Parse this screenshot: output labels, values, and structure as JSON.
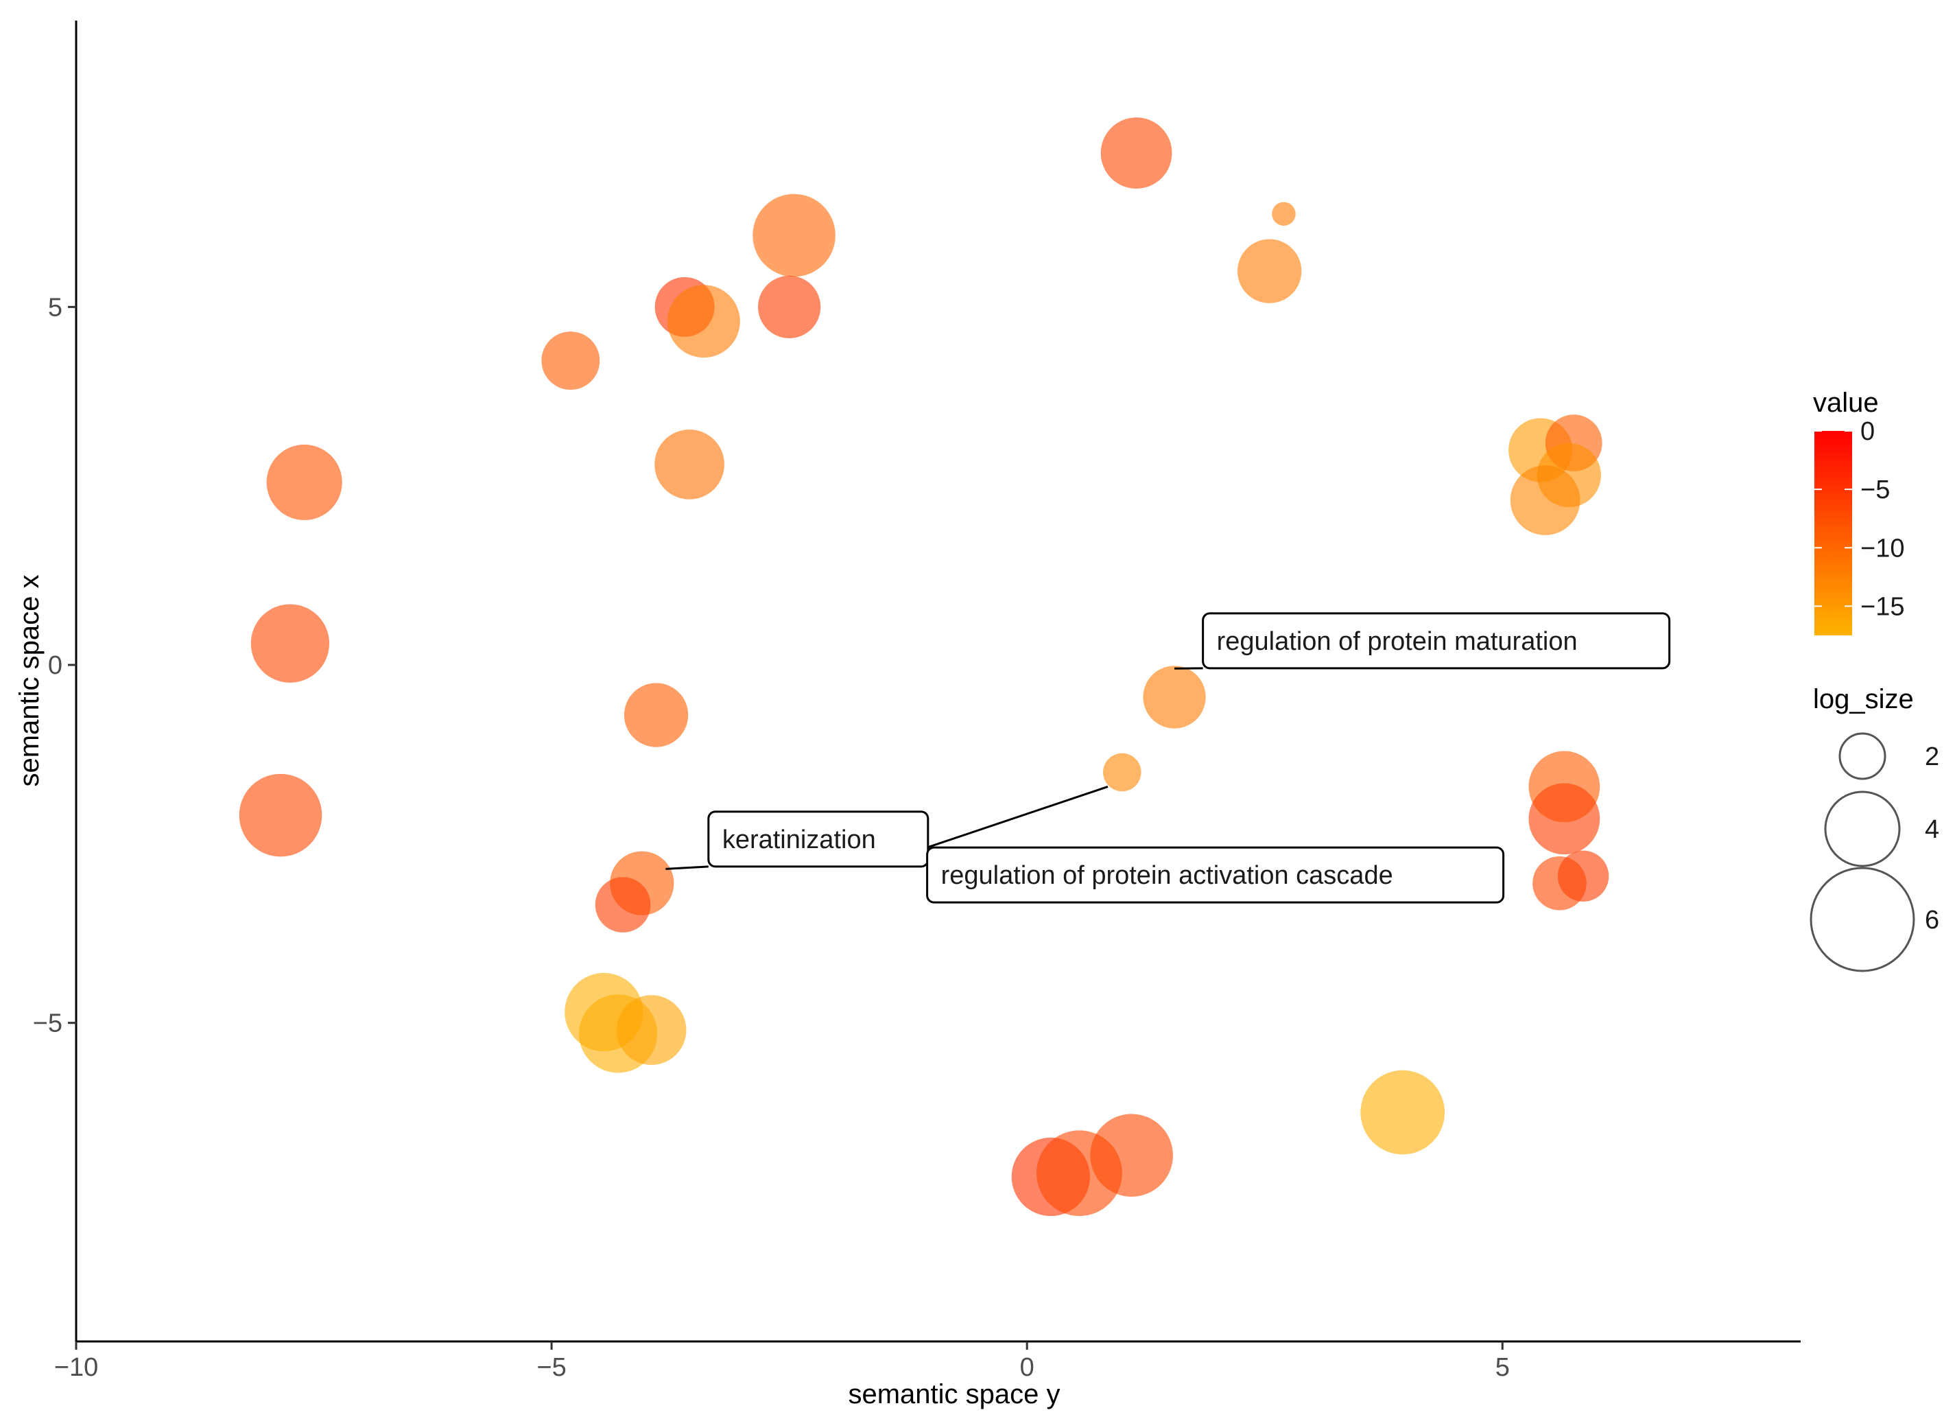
{
  "chart_data": {
    "type": "scatter",
    "title": "",
    "xlabel": "semantic space y",
    "ylabel": "semantic space x",
    "xlim": [
      -10,
      8.1
    ],
    "ylim": [
      -9.45,
      9
    ],
    "x_ticks": [
      -10,
      -5,
      0,
      5
    ],
    "x_tick_labels": [
      "−10",
      "−5",
      "0",
      "5"
    ],
    "y_ticks": [
      -5,
      0,
      5
    ],
    "y_tick_labels": [
      "−5",
      "0",
      "5"
    ],
    "grid": false,
    "legend_position": "right",
    "color_legend": {
      "title": "value",
      "min": -17.5,
      "max": 0,
      "breaks": [
        0,
        -5,
        -10,
        -15
      ],
      "break_labels": [
        "0",
        "−5",
        "−10",
        "−15"
      ],
      "low_color": "#ffb300",
      "high_color": "#ff0000"
    },
    "size_legend": {
      "title": "log_size",
      "breaks": [
        2,
        4,
        6
      ],
      "break_labels": [
        "2",
        "4",
        "6"
      ]
    },
    "points": [
      {
        "x": 1.15,
        "y": 7.15,
        "log_size": 3.8,
        "value": -7
      },
      {
        "x": 2.7,
        "y": 6.3,
        "log_size": 0.5,
        "value": -12
      },
      {
        "x": -2.45,
        "y": 6.0,
        "log_size": 4.6,
        "value": -10
      },
      {
        "x": 2.55,
        "y": 5.5,
        "log_size": 3.3,
        "value": -12
      },
      {
        "x": -3.6,
        "y": 5.0,
        "log_size": 3.0,
        "value": -5
      },
      {
        "x": -3.4,
        "y": 4.8,
        "log_size": 3.9,
        "value": -12
      },
      {
        "x": -2.5,
        "y": 5.0,
        "log_size": 3.2,
        "value": -6
      },
      {
        "x": -4.8,
        "y": 4.25,
        "log_size": 2.9,
        "value": -9
      },
      {
        "x": -3.55,
        "y": 2.8,
        "log_size": 3.7,
        "value": -11
      },
      {
        "x": -7.6,
        "y": 2.55,
        "log_size": 4.1,
        "value": -8
      },
      {
        "x": -7.75,
        "y": 0.3,
        "log_size": 4.3,
        "value": -7
      },
      {
        "x": -7.85,
        "y": -2.1,
        "log_size": 4.6,
        "value": -7
      },
      {
        "x": -3.9,
        "y": -0.7,
        "log_size": 3.3,
        "value": -9
      },
      {
        "x": 1.55,
        "y": -0.45,
        "log_size": 3.2,
        "value": -12
      },
      {
        "x": 1.0,
        "y": -1.5,
        "log_size": 1.5,
        "value": -13
      },
      {
        "x": -4.05,
        "y": -3.05,
        "log_size": 3.3,
        "value": -9
      },
      {
        "x": -4.25,
        "y": -3.35,
        "log_size": 2.7,
        "value": -6
      },
      {
        "x": -4.45,
        "y": -4.85,
        "log_size": 4.3,
        "value": -17
      },
      {
        "x": -4.3,
        "y": -5.15,
        "log_size": 4.3,
        "value": -17
      },
      {
        "x": -3.95,
        "y": -5.1,
        "log_size": 3.7,
        "value": -16
      },
      {
        "x": 3.95,
        "y": -6.25,
        "log_size": 4.7,
        "value": -17
      },
      {
        "x": 0.25,
        "y": -7.15,
        "log_size": 4.3,
        "value": -5
      },
      {
        "x": 0.55,
        "y": -7.1,
        "log_size": 4.8,
        "value": -7
      },
      {
        "x": 1.1,
        "y": -6.85,
        "log_size": 4.6,
        "value": -7
      },
      {
        "x": 5.4,
        "y": 3.0,
        "log_size": 3.3,
        "value": -15
      },
      {
        "x": 5.75,
        "y": 3.1,
        "log_size": 2.8,
        "value": -9
      },
      {
        "x": 5.7,
        "y": 2.65,
        "log_size": 3.3,
        "value": -14
      },
      {
        "x": 5.45,
        "y": 2.3,
        "log_size": 3.7,
        "value": -13
      },
      {
        "x": 5.65,
        "y": -1.7,
        "log_size": 3.8,
        "value": -9
      },
      {
        "x": 5.65,
        "y": -2.15,
        "log_size": 3.8,
        "value": -6
      },
      {
        "x": 5.6,
        "y": -3.05,
        "log_size": 2.6,
        "value": -7
      },
      {
        "x": 5.85,
        "y": -2.95,
        "log_size": 2.4,
        "value": -6
      }
    ],
    "annotations": [
      {
        "text": "regulation of protein maturation",
        "point_x": 1.55,
        "point_y": -0.05,
        "box_x": 1.85,
        "box_y": 0.72
      },
      {
        "text": "keratinization",
        "point_x": -3.8,
        "point_y": -2.85,
        "box_x": -3.35,
        "box_y": -2.05
      },
      {
        "text": "regulation of protein activation cascade",
        "point_x": 0.85,
        "point_y": -1.7,
        "box_x": -1.05,
        "box_y": -2.55
      }
    ]
  }
}
